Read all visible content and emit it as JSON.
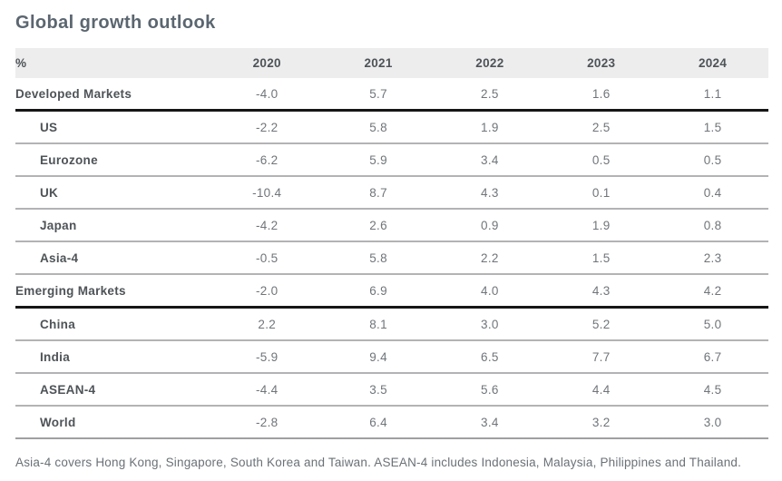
{
  "title": "Global growth outlook",
  "table": {
    "unit_header": "%",
    "years": [
      "2020",
      "2021",
      "2022",
      "2023",
      "2024"
    ],
    "rows": [
      {
        "label": "Developed Markets",
        "indent": false,
        "rule_below": "thick",
        "values": [
          "-4.0",
          "5.7",
          "2.5",
          "1.6",
          "1.1"
        ]
      },
      {
        "label": "US",
        "indent": true,
        "rule_below": "thin",
        "values": [
          "-2.2",
          "5.8",
          "1.9",
          "2.5",
          "1.5"
        ]
      },
      {
        "label": "Eurozone",
        "indent": true,
        "rule_below": "thin",
        "values": [
          "-6.2",
          "5.9",
          "3.4",
          "0.5",
          "0.5"
        ]
      },
      {
        "label": "UK",
        "indent": true,
        "rule_below": "thin",
        "values": [
          "-10.4",
          "8.7",
          "4.3",
          "0.1",
          "0.4"
        ]
      },
      {
        "label": "Japan",
        "indent": true,
        "rule_below": "thin",
        "values": [
          "-4.2",
          "2.6",
          "0.9",
          "1.9",
          "0.8"
        ]
      },
      {
        "label": "Asia-4",
        "indent": true,
        "rule_below": "thin",
        "values": [
          "-0.5",
          "5.8",
          "2.2",
          "1.5",
          "2.3"
        ]
      },
      {
        "label": "Emerging Markets",
        "indent": false,
        "rule_below": "thick",
        "values": [
          "-2.0",
          "6.9",
          "4.0",
          "4.3",
          "4.2"
        ]
      },
      {
        "label": "China",
        "indent": true,
        "rule_below": "thin",
        "values": [
          "2.2",
          "8.1",
          "3.0",
          "5.2",
          "5.0"
        ]
      },
      {
        "label": "India",
        "indent": true,
        "rule_below": "thin",
        "values": [
          "-5.9",
          "9.4",
          "6.5",
          "7.7",
          "6.7"
        ]
      },
      {
        "label": "ASEAN-4",
        "indent": true,
        "rule_below": "thin",
        "values": [
          "-4.4",
          "3.5",
          "5.6",
          "4.4",
          "4.5"
        ]
      },
      {
        "label": "World",
        "indent": true,
        "rule_below": "end",
        "values": [
          "-2.8",
          "6.4",
          "3.4",
          "3.2",
          "3.0"
        ]
      }
    ]
  },
  "footnote": "Asia-4 covers Hong Kong, Singapore, South Korea and Taiwan. ASEAN-4 includes Indonesia, Malaysia, Philippines and Thailand.",
  "colors": {
    "title_text": "#5b6670",
    "header_bg": "#ededee",
    "header_text": "#4e5357",
    "value_text": "#70757a",
    "thin_rule": "#b3b3b5",
    "thick_rule": "#161616"
  }
}
